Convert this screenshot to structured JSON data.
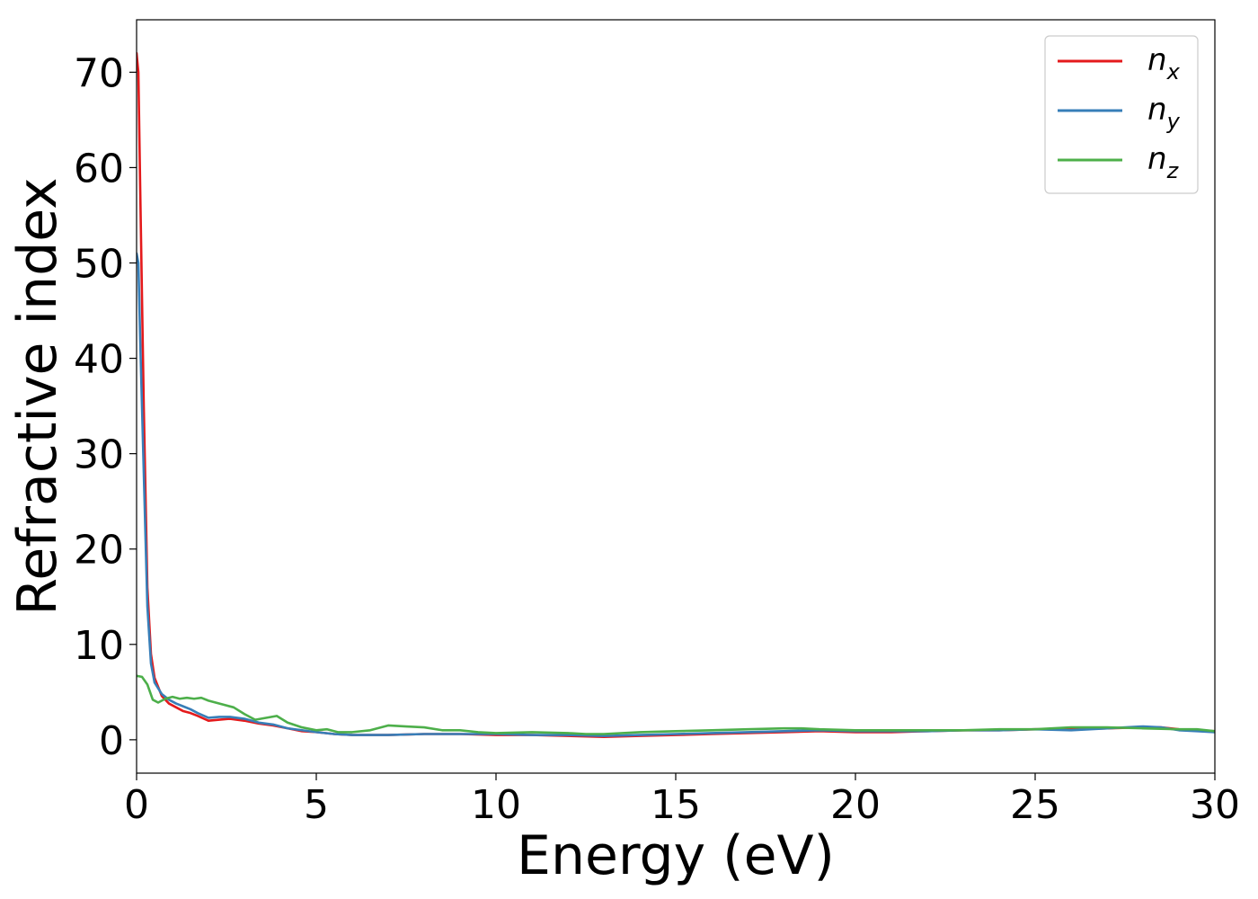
{
  "chart_data": {
    "type": "line",
    "xlabel": "Energy (eV)",
    "ylabel": "Refractive index",
    "xlim": [
      0,
      30
    ],
    "ylim": [
      -3.5,
      75.5
    ],
    "xticks": [
      0,
      5,
      10,
      15,
      20,
      25,
      30
    ],
    "yticks": [
      0,
      10,
      20,
      30,
      40,
      50,
      60,
      70
    ],
    "grid": false,
    "legend_position": "top-right",
    "series": [
      {
        "name": "n",
        "subscript": "x",
        "color": "#e41a1c",
        "points": [
          [
            0,
            72
          ],
          [
            0.05,
            70
          ],
          [
            0.1,
            58
          ],
          [
            0.2,
            35
          ],
          [
            0.3,
            16
          ],
          [
            0.4,
            9
          ],
          [
            0.5,
            6.5
          ],
          [
            0.7,
            4.6
          ],
          [
            0.9,
            3.8
          ],
          [
            1.1,
            3.4
          ],
          [
            1.3,
            3.0
          ],
          [
            1.5,
            2.8
          ],
          [
            1.7,
            2.5
          ],
          [
            2.0,
            2.0
          ],
          [
            2.3,
            2.1
          ],
          [
            2.6,
            2.2
          ],
          [
            3.0,
            2.0
          ],
          [
            3.4,
            1.7
          ],
          [
            3.8,
            1.5
          ],
          [
            4.2,
            1.2
          ],
          [
            4.6,
            0.9
          ],
          [
            5.0,
            0.8
          ],
          [
            5.5,
            0.6
          ],
          [
            6.0,
            0.5
          ],
          [
            7.0,
            0.5
          ],
          [
            8.0,
            0.6
          ],
          [
            9.0,
            0.6
          ],
          [
            10.0,
            0.5
          ],
          [
            11.0,
            0.5
          ],
          [
            12.0,
            0.4
          ],
          [
            13.0,
            0.3
          ],
          [
            14.0,
            0.4
          ],
          [
            15.0,
            0.5
          ],
          [
            16.0,
            0.6
          ],
          [
            17.0,
            0.7
          ],
          [
            18.0,
            0.8
          ],
          [
            19.0,
            0.9
          ],
          [
            20.0,
            0.8
          ],
          [
            21.0,
            0.8
          ],
          [
            22.0,
            0.9
          ],
          [
            23.0,
            1.0
          ],
          [
            24.0,
            1.0
          ],
          [
            25.0,
            1.1
          ],
          [
            26.0,
            1.1
          ],
          [
            27.0,
            1.2
          ],
          [
            28.0,
            1.3
          ],
          [
            28.5,
            1.3
          ],
          [
            29.0,
            1.1
          ],
          [
            29.5,
            1.0
          ],
          [
            30.0,
            0.9
          ]
        ]
      },
      {
        "name": "n",
        "subscript": "y",
        "color": "#377eb8",
        "points": [
          [
            0,
            51
          ],
          [
            0.05,
            50
          ],
          [
            0.1,
            42
          ],
          [
            0.2,
            28
          ],
          [
            0.3,
            14
          ],
          [
            0.4,
            8
          ],
          [
            0.5,
            6
          ],
          [
            0.7,
            4.8
          ],
          [
            0.9,
            4.2
          ],
          [
            1.1,
            3.8
          ],
          [
            1.3,
            3.5
          ],
          [
            1.5,
            3.2
          ],
          [
            1.7,
            2.8
          ],
          [
            2.0,
            2.3
          ],
          [
            2.3,
            2.4
          ],
          [
            2.6,
            2.4
          ],
          [
            3.0,
            2.2
          ],
          [
            3.4,
            1.8
          ],
          [
            3.8,
            1.6
          ],
          [
            4.2,
            1.2
          ],
          [
            4.6,
            1.0
          ],
          [
            5.0,
            0.8
          ],
          [
            5.5,
            0.6
          ],
          [
            6.0,
            0.5
          ],
          [
            7.0,
            0.5
          ],
          [
            8.0,
            0.6
          ],
          [
            9.0,
            0.6
          ],
          [
            10.0,
            0.6
          ],
          [
            11.0,
            0.5
          ],
          [
            12.0,
            0.5
          ],
          [
            13.0,
            0.4
          ],
          [
            14.0,
            0.5
          ],
          [
            15.0,
            0.6
          ],
          [
            16.0,
            0.7
          ],
          [
            17.0,
            0.8
          ],
          [
            18.0,
            0.9
          ],
          [
            19.0,
            1.0
          ],
          [
            20.0,
            0.9
          ],
          [
            21.0,
            0.9
          ],
          [
            22.0,
            0.9
          ],
          [
            23.0,
            1.0
          ],
          [
            24.0,
            1.0
          ],
          [
            25.0,
            1.1
          ],
          [
            26.0,
            1.0
          ],
          [
            27.0,
            1.2
          ],
          [
            28.0,
            1.4
          ],
          [
            28.5,
            1.3
          ],
          [
            29.0,
            1.0
          ],
          [
            29.5,
            0.9
          ],
          [
            30.0,
            0.8
          ]
        ]
      },
      {
        "name": "n",
        "subscript": "z",
        "color": "#4daf4a",
        "points": [
          [
            0,
            6.7
          ],
          [
            0.15,
            6.6
          ],
          [
            0.3,
            5.8
          ],
          [
            0.45,
            4.2
          ],
          [
            0.6,
            3.9
          ],
          [
            0.8,
            4.3
          ],
          [
            1.0,
            4.5
          ],
          [
            1.2,
            4.3
          ],
          [
            1.4,
            4.4
          ],
          [
            1.6,
            4.3
          ],
          [
            1.8,
            4.4
          ],
          [
            2.0,
            4.1
          ],
          [
            2.2,
            3.9
          ],
          [
            2.4,
            3.7
          ],
          [
            2.7,
            3.4
          ],
          [
            3.0,
            2.7
          ],
          [
            3.3,
            2.1
          ],
          [
            3.6,
            2.3
          ],
          [
            3.9,
            2.5
          ],
          [
            4.2,
            1.8
          ],
          [
            4.6,
            1.3
          ],
          [
            5.0,
            1.0
          ],
          [
            5.3,
            1.1
          ],
          [
            5.6,
            0.8
          ],
          [
            6.0,
            0.8
          ],
          [
            6.5,
            1.0
          ],
          [
            7.0,
            1.5
          ],
          [
            7.5,
            1.4
          ],
          [
            8.0,
            1.3
          ],
          [
            8.5,
            1.0
          ],
          [
            9.0,
            1.0
          ],
          [
            9.5,
            0.8
          ],
          [
            10.0,
            0.7
          ],
          [
            11.0,
            0.8
          ],
          [
            12.0,
            0.7
          ],
          [
            12.5,
            0.6
          ],
          [
            13.0,
            0.6
          ],
          [
            14.0,
            0.8
          ],
          [
            15.0,
            0.9
          ],
          [
            16.0,
            1.0
          ],
          [
            17.0,
            1.1
          ],
          [
            18.0,
            1.2
          ],
          [
            18.5,
            1.2
          ],
          [
            19.0,
            1.1
          ],
          [
            20.0,
            1.0
          ],
          [
            21.0,
            1.0
          ],
          [
            22.0,
            1.0
          ],
          [
            23.0,
            1.0
          ],
          [
            24.0,
            1.1
          ],
          [
            25.0,
            1.1
          ],
          [
            26.0,
            1.3
          ],
          [
            27.0,
            1.3
          ],
          [
            28.0,
            1.2
          ],
          [
            29.0,
            1.1
          ],
          [
            29.5,
            1.1
          ],
          [
            30.0,
            0.9
          ]
        ]
      }
    ]
  }
}
